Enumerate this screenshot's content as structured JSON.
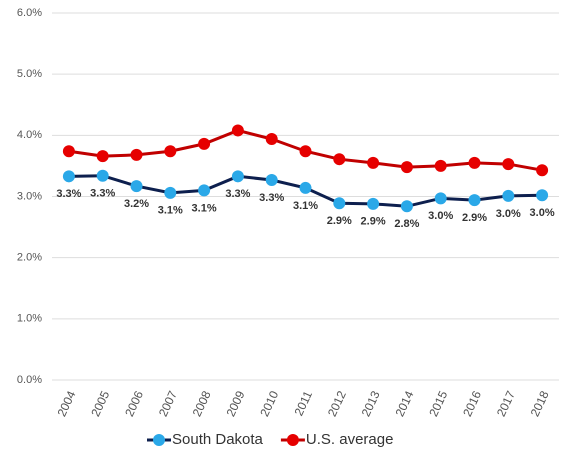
{
  "chart_data": {
    "type": "line",
    "categories": [
      "2004",
      "2005",
      "2006",
      "2007",
      "2008",
      "2009",
      "2010",
      "2011",
      "2012",
      "2013",
      "2014",
      "2015",
      "2016",
      "2017",
      "2018"
    ],
    "series": [
      {
        "name": "South Dakota",
        "color": "#0d1f4e",
        "marker_color": "#2aa8e8",
        "values": [
          3.33,
          3.34,
          3.17,
          3.06,
          3.1,
          3.33,
          3.27,
          3.14,
          2.89,
          2.88,
          2.84,
          2.97,
          2.94,
          3.01,
          3.02
        ],
        "value_labels": [
          "3.3%",
          "3.3%",
          "3.2%",
          "3.1%",
          "3.1%",
          "3.3%",
          "3.3%",
          "3.1%",
          "2.9%",
          "2.9%",
          "2.8%",
          "3.0%",
          "2.9%",
          "3.0%",
          "3.0%"
        ]
      },
      {
        "name": "U.S. average",
        "color": "#c00000",
        "marker_color": "#e60000",
        "values": [
          3.74,
          3.66,
          3.68,
          3.74,
          3.86,
          4.08,
          3.94,
          3.74,
          3.61,
          3.55,
          3.48,
          3.5,
          3.55,
          3.53,
          3.43
        ]
      }
    ],
    "ylim": [
      0,
      6
    ],
    "yticks": [
      {
        "value": 0,
        "label": "0.0%"
      },
      {
        "value": 1,
        "label": "1.0%"
      },
      {
        "value": 2,
        "label": "2.0%"
      },
      {
        "value": 3,
        "label": "3.0%"
      },
      {
        "value": 4,
        "label": "4.0%"
      },
      {
        "value": 5,
        "label": "5.0%"
      },
      {
        "value": 6,
        "label": "6.0%"
      }
    ],
    "grid": true,
    "legend": "bottom"
  }
}
